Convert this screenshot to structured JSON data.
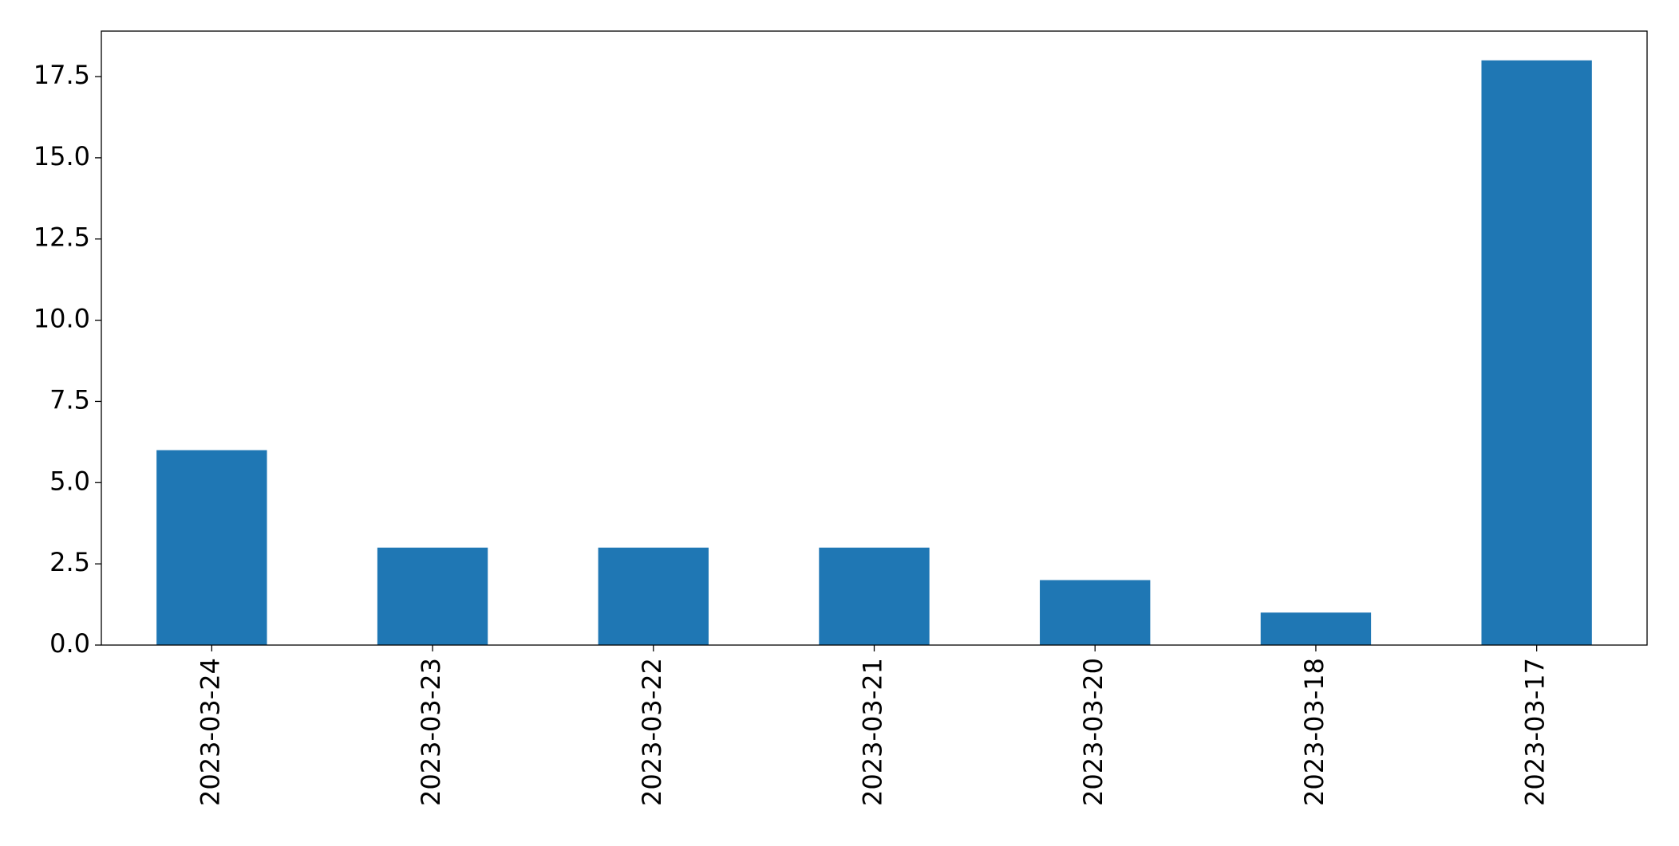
{
  "chart_data": {
    "type": "bar",
    "categories": [
      "2023-03-24",
      "2023-03-23",
      "2023-03-22",
      "2023-03-21",
      "2023-03-20",
      "2023-03-18",
      "2023-03-17"
    ],
    "values": [
      6,
      3,
      3,
      3,
      2,
      1,
      18
    ],
    "color": "#1f77b4",
    "ylim": [
      0,
      18.9
    ],
    "yticks": [
      {
        "value": 0,
        "label": "0.0"
      },
      2.5,
      {
        "value": 5,
        "label": "5.0"
      },
      7.5,
      {
        "value": 10,
        "label": "10.0"
      },
      12.5,
      {
        "value": 15,
        "label": "15.0"
      },
      17.5
    ],
    "grid": false
  }
}
